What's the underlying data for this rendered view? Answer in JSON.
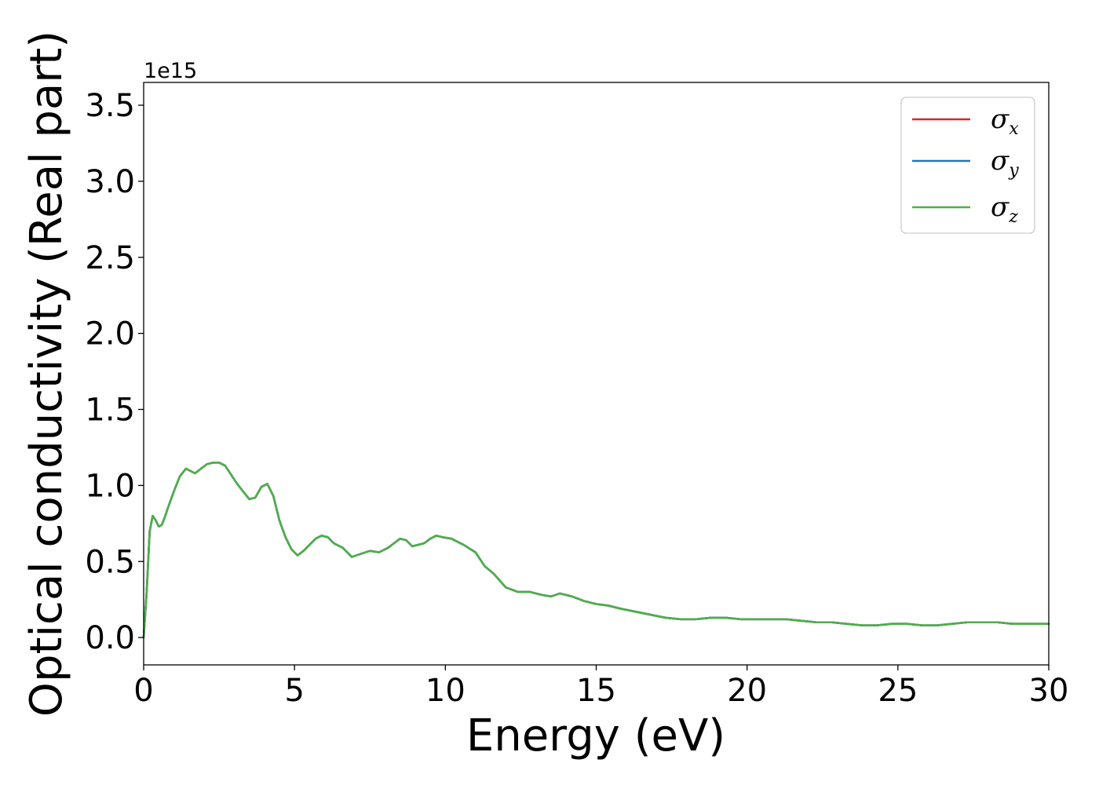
{
  "chart_data": {
    "type": "line",
    "title": "",
    "xlabel": "Energy (eV)",
    "ylabel": "Optical conductivity (Real part)",
    "y_offset_label": "1e15",
    "y_scale_factor": 1000000000000000.0,
    "xlim": [
      0,
      30
    ],
    "ylim": [
      -0.18,
      3.65
    ],
    "x_ticks": [
      0,
      5,
      10,
      15,
      20,
      25,
      30
    ],
    "x_tick_labels": [
      "0",
      "5",
      "10",
      "15",
      "20",
      "25",
      "30"
    ],
    "y_ticks": [
      0.0,
      0.5,
      1.0,
      1.5,
      2.0,
      2.5,
      3.0,
      3.5
    ],
    "y_tick_labels": [
      "0.0",
      "0.5",
      "1.0",
      "1.5",
      "2.0",
      "2.5",
      "3.0",
      "3.5"
    ],
    "grid": false,
    "legend_position": "top-right",
    "x": [
      0,
      0.1,
      0.2,
      0.3,
      0.4,
      0.5,
      0.6,
      0.7,
      0.8,
      1.0,
      1.2,
      1.4,
      1.5,
      1.7,
      1.9,
      2.1,
      2.3,
      2.5,
      2.7,
      2.9,
      3.1,
      3.3,
      3.5,
      3.7,
      3.9,
      4.1,
      4.3,
      4.5,
      4.7,
      4.9,
      5.1,
      5.3,
      5.5,
      5.7,
      5.9,
      6.1,
      6.3,
      6.6,
      6.9,
      7.2,
      7.5,
      7.8,
      8.1,
      8.3,
      8.5,
      8.7,
      8.9,
      9.1,
      9.3,
      9.5,
      9.7,
      9.9,
      10.2,
      10.6,
      11.0,
      11.3,
      11.6,
      12.0,
      12.4,
      12.8,
      13.2,
      13.5,
      13.8,
      14.2,
      14.6,
      15.0,
      15.4,
      15.8,
      16.3,
      16.8,
      17.3,
      17.8,
      18.3,
      18.8,
      19.3,
      19.8,
      20.3,
      20.8,
      21.3,
      21.8,
      22.3,
      22.8,
      23.3,
      23.8,
      24.3,
      24.8,
      25.3,
      25.8,
      26.3,
      26.8,
      27.3,
      27.8,
      28.3,
      28.8,
      29.3,
      30.0
    ],
    "series": [
      {
        "name": "σx",
        "color": "#d62728",
        "values": [
          0.0,
          0.3,
          0.7,
          0.8,
          0.77,
          0.73,
          0.74,
          0.79,
          0.85,
          0.96,
          1.06,
          1.11,
          1.1,
          1.08,
          1.11,
          1.14,
          1.15,
          1.15,
          1.13,
          1.07,
          1.01,
          0.96,
          0.91,
          0.92,
          0.99,
          1.01,
          0.93,
          0.77,
          0.66,
          0.58,
          0.54,
          0.57,
          0.61,
          0.65,
          0.67,
          0.66,
          0.62,
          0.59,
          0.53,
          0.55,
          0.57,
          0.56,
          0.59,
          0.62,
          0.65,
          0.64,
          0.6,
          0.61,
          0.62,
          0.65,
          0.67,
          0.66,
          0.65,
          0.61,
          0.56,
          0.47,
          0.42,
          0.33,
          0.3,
          0.3,
          0.28,
          0.27,
          0.29,
          0.27,
          0.24,
          0.22,
          0.21,
          0.19,
          0.17,
          0.15,
          0.13,
          0.12,
          0.12,
          0.13,
          0.13,
          0.12,
          0.12,
          0.12,
          0.12,
          0.11,
          0.1,
          0.1,
          0.09,
          0.08,
          0.08,
          0.09,
          0.09,
          0.08,
          0.08,
          0.09,
          0.1,
          0.1,
          0.1,
          0.09,
          0.09,
          0.09
        ]
      },
      {
        "name": "σy",
        "color": "#1f77b4",
        "values": [
          0.0,
          0.3,
          0.7,
          0.8,
          0.77,
          0.73,
          0.74,
          0.79,
          0.85,
          0.96,
          1.06,
          1.11,
          1.1,
          1.08,
          1.11,
          1.14,
          1.15,
          1.15,
          1.13,
          1.07,
          1.01,
          0.96,
          0.91,
          0.92,
          0.99,
          1.01,
          0.93,
          0.77,
          0.66,
          0.58,
          0.54,
          0.57,
          0.61,
          0.65,
          0.67,
          0.66,
          0.62,
          0.59,
          0.53,
          0.55,
          0.57,
          0.56,
          0.59,
          0.62,
          0.65,
          0.64,
          0.6,
          0.61,
          0.62,
          0.65,
          0.67,
          0.66,
          0.65,
          0.61,
          0.56,
          0.47,
          0.42,
          0.33,
          0.3,
          0.3,
          0.28,
          0.27,
          0.29,
          0.27,
          0.24,
          0.22,
          0.21,
          0.19,
          0.17,
          0.15,
          0.13,
          0.12,
          0.12,
          0.13,
          0.13,
          0.12,
          0.12,
          0.12,
          0.12,
          0.11,
          0.1,
          0.1,
          0.09,
          0.08,
          0.08,
          0.09,
          0.09,
          0.08,
          0.08,
          0.09,
          0.1,
          0.1,
          0.1,
          0.09,
          0.09,
          0.09
        ]
      },
      {
        "name": "σz",
        "color": "#4daf4a",
        "values": [
          0.0,
          0.3,
          0.7,
          0.8,
          0.77,
          0.73,
          0.74,
          0.79,
          0.85,
          0.96,
          1.06,
          1.11,
          1.1,
          1.08,
          1.11,
          1.14,
          1.15,
          1.15,
          1.13,
          1.07,
          1.01,
          0.96,
          0.91,
          0.92,
          0.99,
          1.01,
          0.93,
          0.77,
          0.66,
          0.58,
          0.54,
          0.57,
          0.61,
          0.65,
          0.67,
          0.66,
          0.62,
          0.59,
          0.53,
          0.55,
          0.57,
          0.56,
          0.59,
          0.62,
          0.65,
          0.64,
          0.6,
          0.61,
          0.62,
          0.65,
          0.67,
          0.66,
          0.65,
          0.61,
          0.56,
          0.47,
          0.42,
          0.33,
          0.3,
          0.3,
          0.28,
          0.27,
          0.29,
          0.27,
          0.24,
          0.22,
          0.21,
          0.19,
          0.17,
          0.15,
          0.13,
          0.12,
          0.12,
          0.13,
          0.13,
          0.12,
          0.12,
          0.12,
          0.12,
          0.11,
          0.1,
          0.1,
          0.09,
          0.08,
          0.08,
          0.09,
          0.09,
          0.08,
          0.08,
          0.09,
          0.1,
          0.1,
          0.1,
          0.09,
          0.09,
          0.09
        ]
      }
    ],
    "legend": {
      "entries": [
        {
          "symbol": "σ",
          "sub": "x"
        },
        {
          "symbol": "σ",
          "sub": "y"
        },
        {
          "symbol": "σ",
          "sub": "z"
        }
      ]
    }
  }
}
